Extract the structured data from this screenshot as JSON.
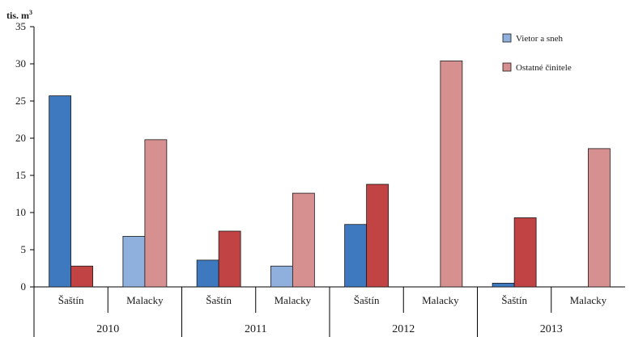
{
  "chart_data": {
    "type": "bar",
    "unit_label": "tis. m",
    "unit_superscript": "3",
    "ylim": [
      0,
      35
    ],
    "yticks": [
      0,
      5,
      10,
      15,
      20,
      25,
      30,
      35
    ],
    "legend_position": "top-right",
    "legend": [
      {
        "name": "Vietor a sneh",
        "color": "#8FB0DD"
      },
      {
        "name": "Ostatné činitele",
        "color": "#D69090"
      }
    ],
    "groups": [
      {
        "year": "2010",
        "categories": [
          {
            "label": "Šaštín",
            "values": [
              25.7,
              2.8
            ],
            "colors": [
              "#3E78BF",
              "#C14343"
            ]
          },
          {
            "label": "Malacky",
            "values": [
              6.8,
              19.8
            ],
            "colors": [
              "#8FB0DD",
              "#D69090"
            ]
          }
        ]
      },
      {
        "year": "2011",
        "categories": [
          {
            "label": "Šaštín",
            "values": [
              3.6,
              7.5
            ],
            "colors": [
              "#3E78BF",
              "#C14343"
            ]
          },
          {
            "label": "Malacky",
            "values": [
              2.8,
              12.6
            ],
            "colors": [
              "#8FB0DD",
              "#D69090"
            ]
          }
        ]
      },
      {
        "year": "2012",
        "categories": [
          {
            "label": "Šaštín",
            "values": [
              8.4,
              13.8
            ],
            "colors": [
              "#3E78BF",
              "#C14343"
            ]
          },
          {
            "label": "Malacky",
            "values": [
              0,
              30.4
            ],
            "colors": [
              "#8FB0DD",
              "#D69090"
            ]
          }
        ]
      },
      {
        "year": "2013",
        "categories": [
          {
            "label": "Šaštín",
            "values": [
              0.5,
              9.3
            ],
            "colors": [
              "#3E78BF",
              "#C14343"
            ]
          },
          {
            "label": "Malacky",
            "values": [
              0,
              18.6
            ],
            "colors": [
              "#8FB0DD",
              "#D69090"
            ]
          }
        ]
      }
    ]
  }
}
